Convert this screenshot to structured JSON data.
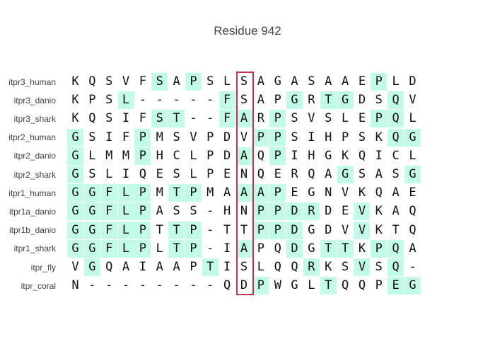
{
  "title": "Residue 942",
  "highlight_color": "#c2fbe6",
  "marker_color": "#c0334d",
  "marked_column": 10,
  "rows": [
    {
      "name": "itpr3_human",
      "seq": "KQSVFSAPSLSAGASAAEPLD",
      "hl": [
        5,
        7,
        18
      ]
    },
    {
      "name": "itpr3_danio",
      "seq": "KPSL-----FSAPGRTGDSQV",
      "hl": [
        3,
        9,
        13,
        15,
        16,
        19
      ]
    },
    {
      "name": "itpr3_shark",
      "seq": "KQSIFST--FARPSVSLEPQL",
      "hl": [
        5,
        6,
        9,
        10,
        12,
        18,
        19
      ]
    },
    {
      "name": "itpr2_human",
      "seq": "GSIFPMSVPDVPPSIHPSKQG",
      "hl": [
        0,
        4,
        11,
        12,
        19,
        20
      ]
    },
    {
      "name": "itpr2_danio",
      "seq": "GLMMPHCLPDAQPIHGKQICL",
      "hl": [
        0,
        4,
        10,
        12
      ]
    },
    {
      "name": "itpr2_shark",
      "seq": "GSLIQESLPENQERQAGSASG",
      "hl": [
        0,
        16,
        20
      ]
    },
    {
      "name": "itpr1_human",
      "seq": "GGFLPMTPMAAAPEGNVKQAE",
      "hl": [
        0,
        1,
        2,
        3,
        4,
        6,
        7,
        10,
        11,
        12
      ]
    },
    {
      "name": "itpr1a_danio",
      "seq": "GGFLPASS-HNPPDRDEVKAQ",
      "hl": [
        0,
        1,
        2,
        3,
        4,
        11,
        12,
        13,
        14,
        17
      ]
    },
    {
      "name": "itpr1b_danio",
      "seq": "GGFLPTTP-TTPPDGDVVKTQ",
      "hl": [
        0,
        1,
        2,
        3,
        4,
        6,
        7,
        11,
        12,
        13,
        17
      ]
    },
    {
      "name": "itpr1_shark",
      "seq": "GGFLPLTP-IAPQDGTTKPQA",
      "hl": [
        0,
        1,
        2,
        3,
        4,
        6,
        7,
        10,
        13,
        15,
        16,
        18,
        19
      ]
    },
    {
      "name": "itpr_fly",
      "seq": "VGQAIAAPTISLQQRKSVSQ-",
      "hl": [
        1,
        8,
        14,
        17,
        19
      ]
    },
    {
      "name": "itpr_coral",
      "seq": "N--------QDPWGLTQQPEG",
      "hl": [
        11,
        15,
        19,
        20
      ]
    }
  ]
}
